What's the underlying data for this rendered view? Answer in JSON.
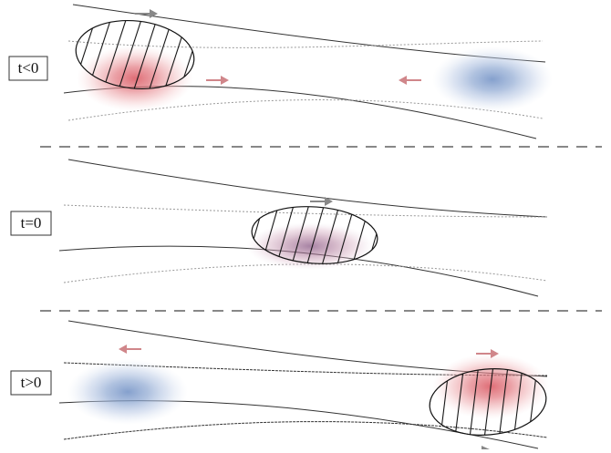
{
  "panels": [
    {
      "label": "t<0"
    },
    {
      "label": "t=0"
    },
    {
      "label": "t>0"
    }
  ]
}
